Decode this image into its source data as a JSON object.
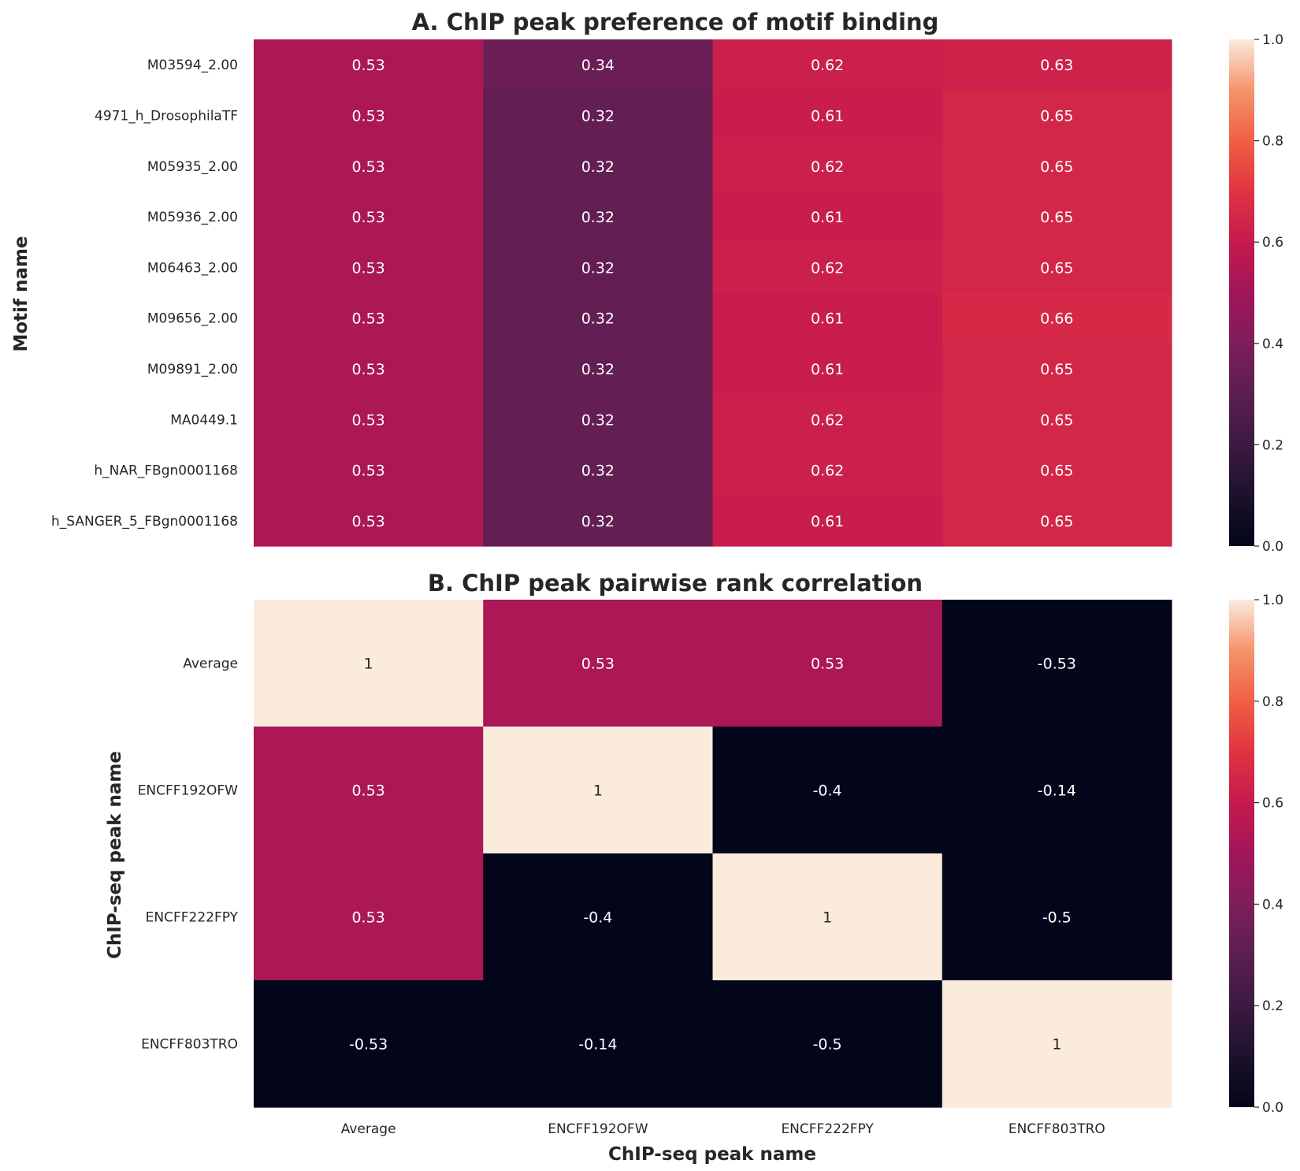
{
  "chart_data": [
    {
      "type": "heatmap",
      "title": "A. ChIP peak preference of motif binding",
      "ylabel": "Motif name",
      "xlabel": "",
      "rows": [
        "M03594_2.00",
        "4971_h_DrosophilaTF",
        "M05935_2.00",
        "M05936_2.00",
        "M06463_2.00",
        "M09656_2.00",
        "M09891_2.00",
        "MA0449.1",
        "h_NAR_FBgn0001168",
        "h_SANGER_5_FBgn0001168"
      ],
      "columns": [
        "Average",
        "ENCFF192OFW",
        "ENCFF222FPY",
        "ENCFF803TRO"
      ],
      "show_x_ticks": false,
      "values": [
        [
          0.53,
          0.34,
          0.62,
          0.63
        ],
        [
          0.53,
          0.32,
          0.61,
          0.65
        ],
        [
          0.53,
          0.32,
          0.62,
          0.65
        ],
        [
          0.53,
          0.32,
          0.61,
          0.65
        ],
        [
          0.53,
          0.32,
          0.62,
          0.65
        ],
        [
          0.53,
          0.32,
          0.61,
          0.66
        ],
        [
          0.53,
          0.32,
          0.61,
          0.65
        ],
        [
          0.53,
          0.32,
          0.62,
          0.65
        ],
        [
          0.53,
          0.32,
          0.62,
          0.65
        ],
        [
          0.53,
          0.32,
          0.61,
          0.65
        ]
      ],
      "labels": [
        [
          "0.53",
          "0.34",
          "0.62",
          "0.63"
        ],
        [
          "0.53",
          "0.32",
          "0.61",
          "0.65"
        ],
        [
          "0.53",
          "0.32",
          "0.62",
          "0.65"
        ],
        [
          "0.53",
          "0.32",
          "0.61",
          "0.65"
        ],
        [
          "0.53",
          "0.32",
          "0.62",
          "0.65"
        ],
        [
          "0.53",
          "0.32",
          "0.61",
          "0.66"
        ],
        [
          "0.53",
          "0.32",
          "0.61",
          "0.65"
        ],
        [
          "0.53",
          "0.32",
          "0.62",
          "0.65"
        ],
        [
          "0.53",
          "0.32",
          "0.62",
          "0.65"
        ],
        [
          "0.53",
          "0.32",
          "0.61",
          "0.65"
        ]
      ],
      "colorbar": {
        "range": [
          0,
          1
        ],
        "ticks": [
          "0.0",
          "0.2",
          "0.4",
          "0.6",
          "0.8",
          "1.0"
        ],
        "colormap": "rocket"
      }
    },
    {
      "type": "heatmap",
      "title": "B. ChIP peak pairwise rank correlation",
      "ylabel": "ChIP-seq peak name",
      "xlabel": "ChIP-seq peak name",
      "rows": [
        "Average",
        "ENCFF192OFW",
        "ENCFF222FPY",
        "ENCFF803TRO"
      ],
      "columns": [
        "Average",
        "ENCFF192OFW",
        "ENCFF222FPY",
        "ENCFF803TRO"
      ],
      "show_x_ticks": true,
      "values": [
        [
          1,
          0.53,
          0.53,
          -0.53
        ],
        [
          0.53,
          1,
          -0.4,
          -0.14
        ],
        [
          0.53,
          -0.4,
          1,
          -0.5
        ],
        [
          -0.53,
          -0.14,
          -0.5,
          1
        ]
      ],
      "labels": [
        [
          "1",
          "0.53",
          "0.53",
          "-0.53"
        ],
        [
          "0.53",
          "1",
          "-0.4",
          "-0.14"
        ],
        [
          "0.53",
          "-0.4",
          "1",
          "-0.5"
        ],
        [
          "-0.53",
          "-0.14",
          "-0.5",
          "1"
        ]
      ],
      "colorbar": {
        "range": [
          0,
          1
        ],
        "ticks": [
          "0.0",
          "0.2",
          "0.4",
          "0.6",
          "0.8",
          "1.0"
        ],
        "colormap": "rocket"
      }
    }
  ]
}
